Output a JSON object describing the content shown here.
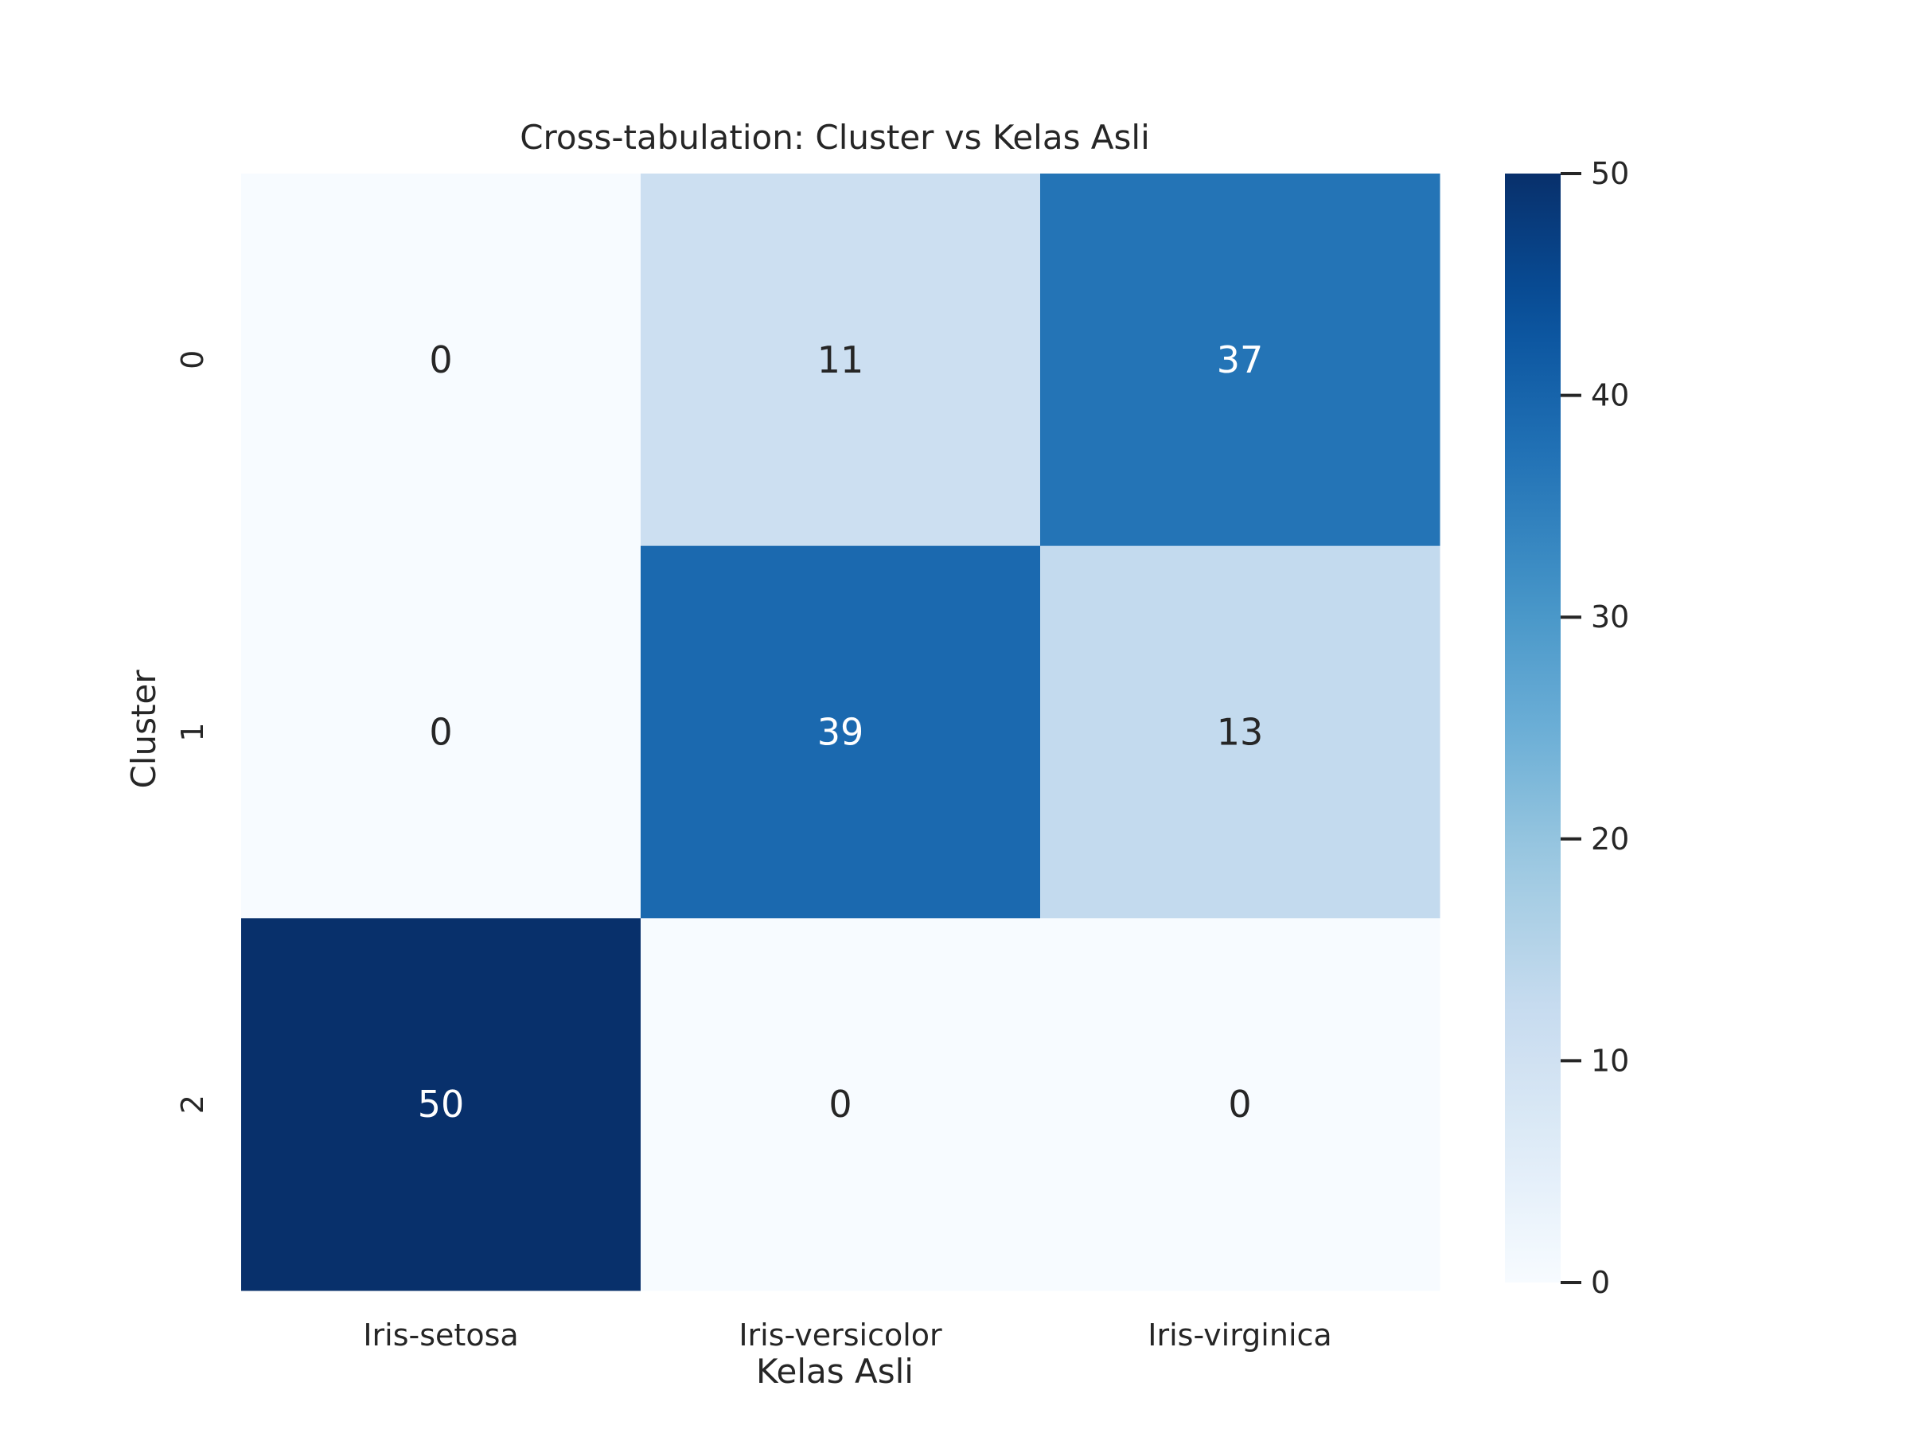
{
  "chart_data": {
    "type": "heatmap",
    "title": "Cross-tabulation: Cluster vs Kelas Asli",
    "xlabel": "Kelas Asli",
    "ylabel": "Cluster",
    "x_categories": [
      "Iris-setosa",
      "Iris-versicolor",
      "Iris-virginica"
    ],
    "y_categories": [
      "0",
      "1",
      "2"
    ],
    "values": [
      [
        0,
        11,
        37
      ],
      [
        0,
        39,
        13
      ],
      [
        50,
        0,
        0
      ]
    ],
    "colormap": "Blues",
    "vmin": 0,
    "vmax": 50,
    "colorbar_ticks": [
      "0",
      "10",
      "20",
      "30",
      "40",
      "50"
    ],
    "annot_dark": "#262626",
    "annot_light": "#ffffff"
  }
}
